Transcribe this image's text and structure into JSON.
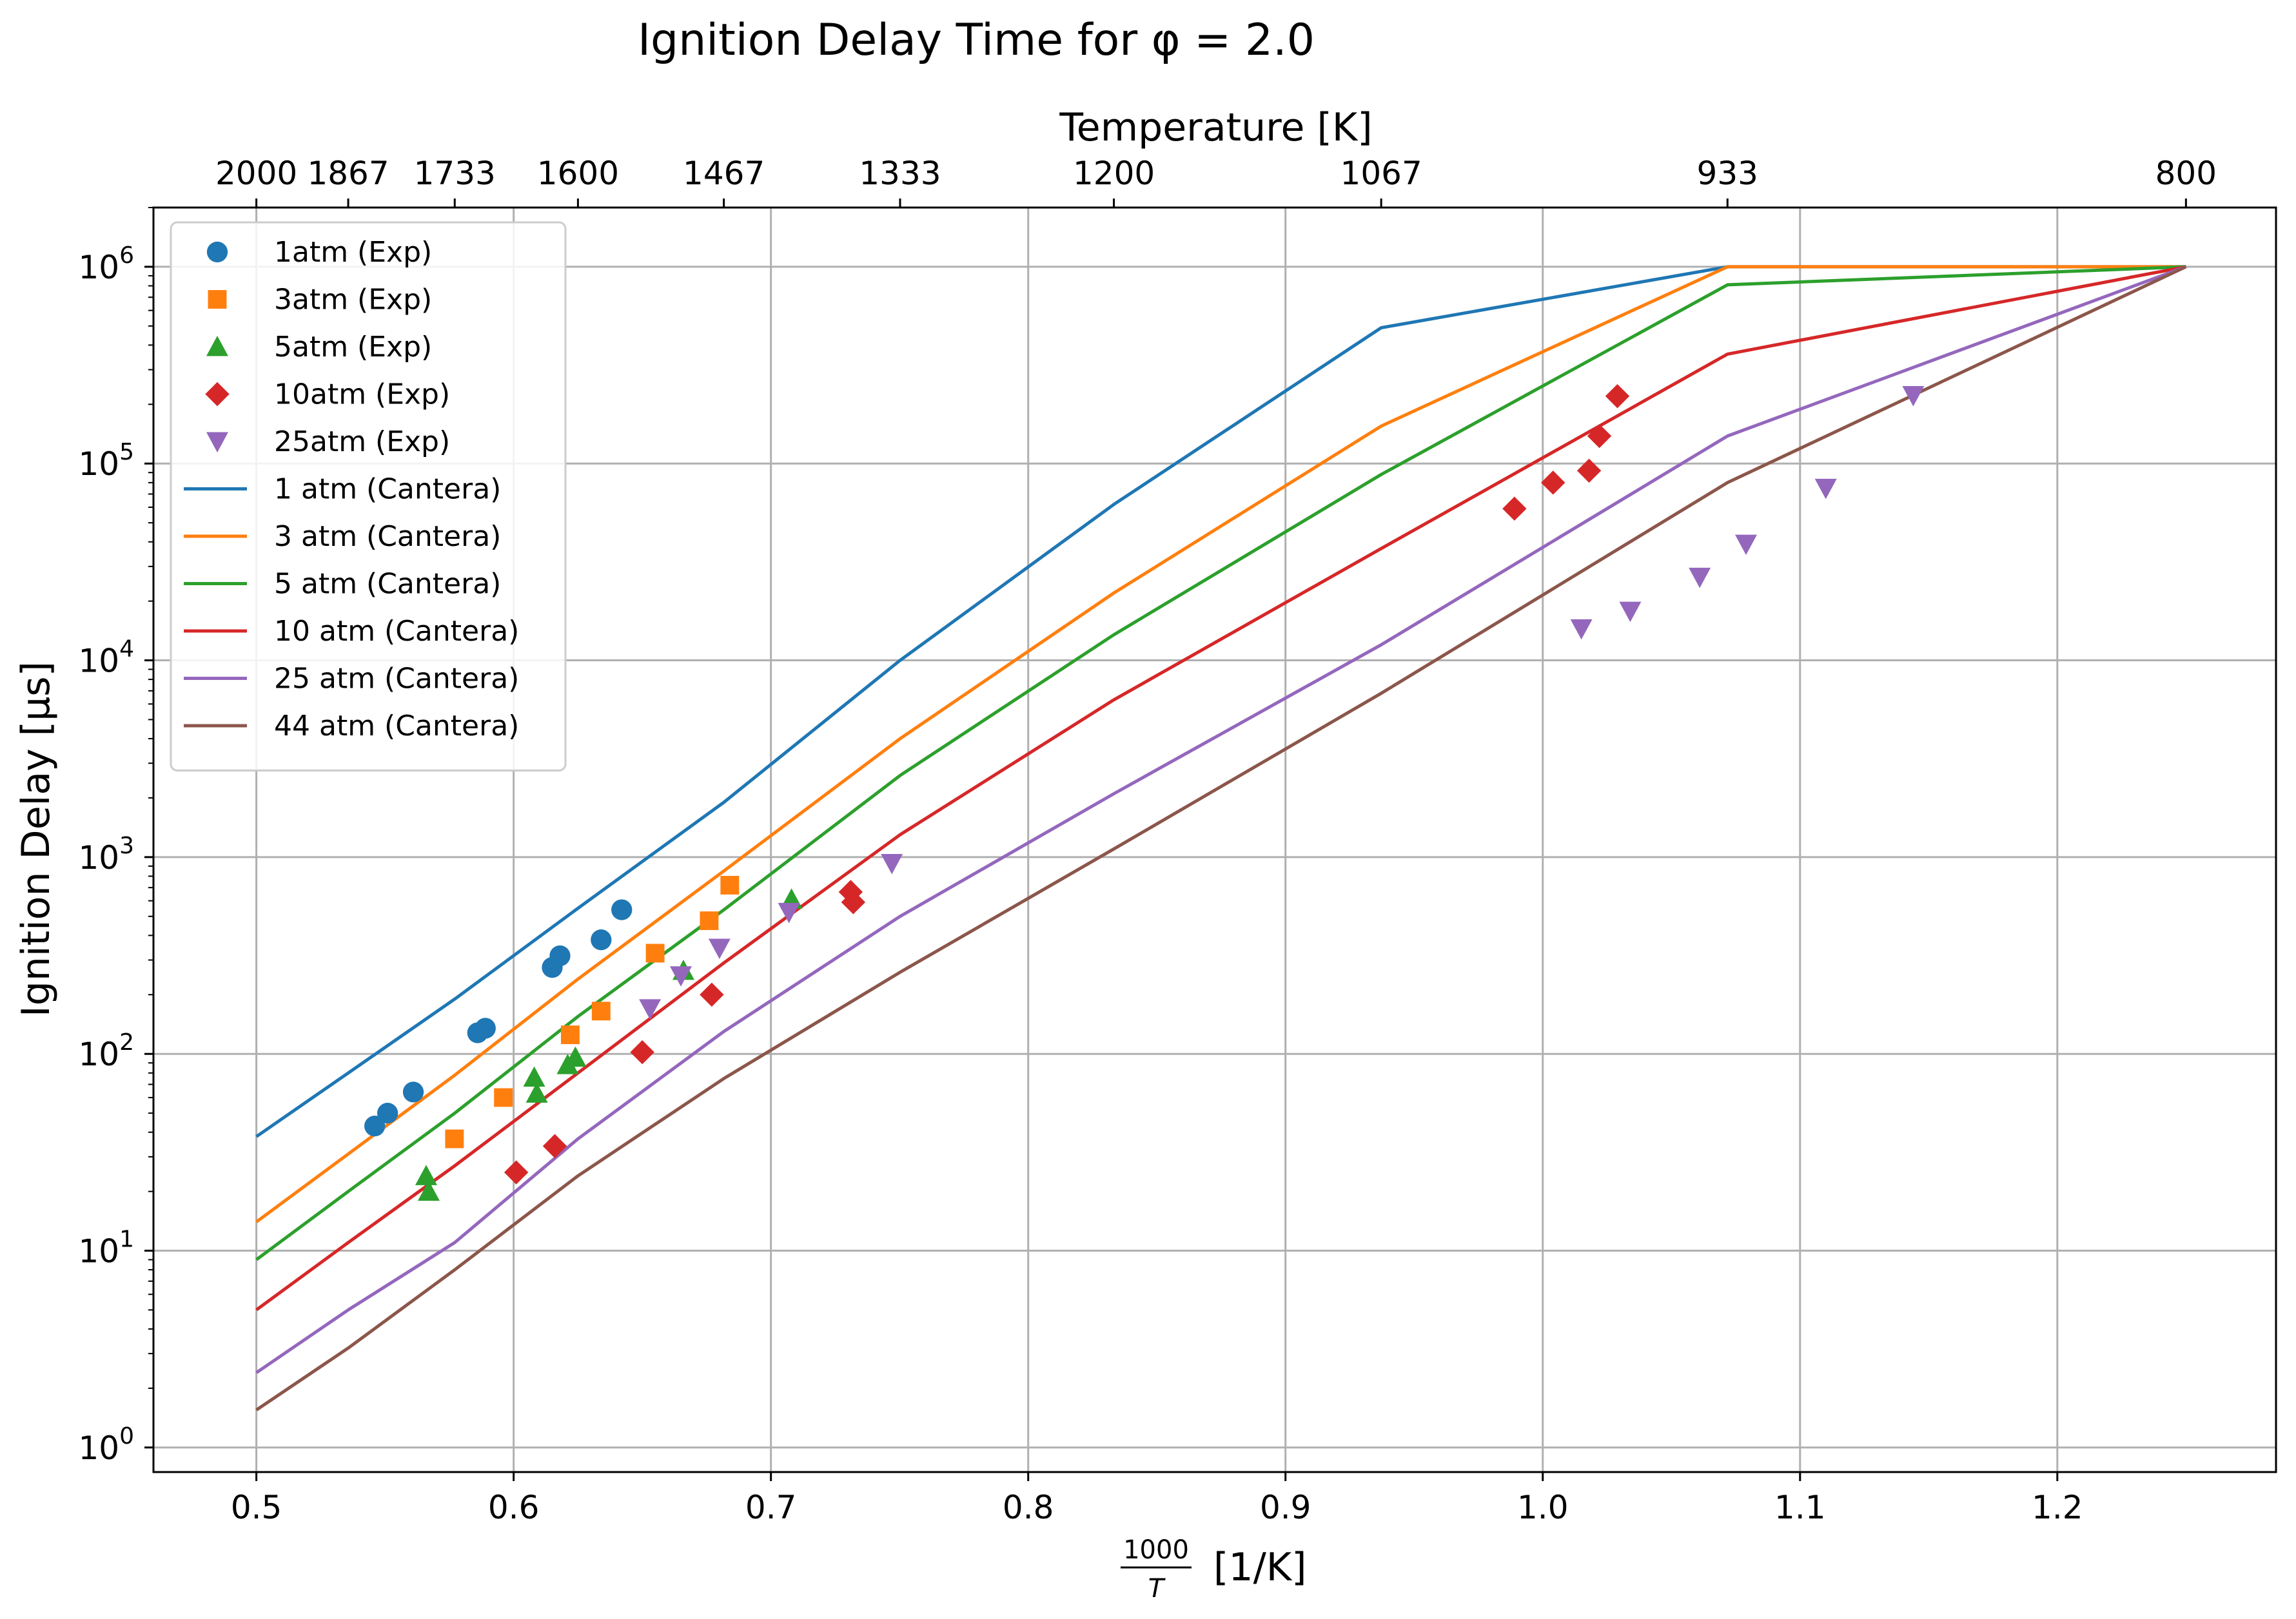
{
  "chart_data": {
    "type": "scatter",
    "title": "Ignition Delay Time for φ = 2.0",
    "xlabel_num": "1000",
    "xlabel_den": "T",
    "xlabel_unit": "[1/K]",
    "ylabel": "Ignition Delay [μs]",
    "top_xlabel": "Temperature [K]",
    "xlim": [
      0.46,
      1.285
    ],
    "ylim": [
      0.75,
      2000000
    ],
    "yscale": "log",
    "grid": true,
    "legend_position": "upper-left",
    "x_ticks": [
      0.5,
      0.6,
      0.7,
      0.8,
      0.9,
      1.0,
      1.1,
      1.2
    ],
    "x_tick_labels": [
      "0.5",
      "0.6",
      "0.7",
      "0.8",
      "0.9",
      "1.0",
      "1.1",
      "1.2"
    ],
    "y_ticks": [
      1,
      10,
      100,
      1000,
      10000,
      100000,
      1000000
    ],
    "y_tick_exponents": [
      "0",
      "1",
      "2",
      "3",
      "4",
      "5",
      "6"
    ],
    "top_ticks": [
      {
        "x": 0.5,
        "label": "2000"
      },
      {
        "x": 0.5357,
        "label": "1867"
      },
      {
        "x": 0.5771,
        "label": "1733"
      },
      {
        "x": 0.625,
        "label": "1600"
      },
      {
        "x": 0.6817,
        "label": "1467"
      },
      {
        "x": 0.7502,
        "label": "1333"
      },
      {
        "x": 0.8333,
        "label": "1200"
      },
      {
        "x": 0.9372,
        "label": "1067"
      },
      {
        "x": 1.0718,
        "label": "933"
      },
      {
        "x": 1.25,
        "label": "800"
      }
    ],
    "experiments": [
      {
        "name": "1atm (Exp)",
        "color": "#1f77b4",
        "marker": "circle",
        "points": [
          [
            0.546,
            43
          ],
          [
            0.551,
            50
          ],
          [
            0.561,
            64
          ],
          [
            0.586,
            128
          ],
          [
            0.589,
            135
          ],
          [
            0.615,
            275
          ],
          [
            0.618,
            315
          ],
          [
            0.634,
            380
          ],
          [
            0.642,
            540
          ]
        ]
      },
      {
        "name": "3atm (Exp)",
        "color": "#ff7f0e",
        "marker": "square",
        "points": [
          [
            0.577,
            37
          ],
          [
            0.596,
            60
          ],
          [
            0.622,
            125
          ],
          [
            0.634,
            165
          ],
          [
            0.655,
            325
          ],
          [
            0.676,
            475
          ],
          [
            0.684,
            720
          ]
        ]
      },
      {
        "name": "5atm (Exp)",
        "color": "#2ca02c",
        "marker": "triangle-up",
        "points": [
          [
            0.566,
            24
          ],
          [
            0.567,
            20
          ],
          [
            0.608,
            76
          ],
          [
            0.609,
            63
          ],
          [
            0.621,
            88
          ],
          [
            0.624,
            96
          ],
          [
            0.666,
            265
          ],
          [
            0.708,
            610
          ]
        ]
      },
      {
        "name": "10atm (Exp)",
        "color": "#d62728",
        "marker": "diamond",
        "points": [
          [
            0.601,
            25
          ],
          [
            0.616,
            34
          ],
          [
            0.65,
            102
          ],
          [
            0.677,
            200
          ],
          [
            0.731,
            665
          ],
          [
            0.732,
            590
          ],
          [
            0.989,
            59000
          ],
          [
            1.004,
            80000
          ],
          [
            1.018,
            92000
          ],
          [
            1.022,
            138000
          ],
          [
            1.029,
            220000
          ]
        ]
      },
      {
        "name": "25atm (Exp)",
        "color": "#9467bd",
        "marker": "triangle-down",
        "points": [
          [
            0.653,
            170
          ],
          [
            0.665,
            250
          ],
          [
            0.68,
            345
          ],
          [
            0.707,
            525
          ],
          [
            0.747,
            930
          ],
          [
            1.015,
            14500
          ],
          [
            1.034,
            17800
          ],
          [
            1.061,
            26500
          ],
          [
            1.079,
            39000
          ],
          [
            1.11,
            75000
          ],
          [
            1.144,
            222000
          ]
        ]
      }
    ],
    "simulations": [
      {
        "name": "1 atm (Cantera)",
        "color": "#1f77b4",
        "points": [
          [
            0.5,
            38
          ],
          [
            0.5357,
            80
          ],
          [
            0.5771,
            190
          ],
          [
            0.625,
            550
          ],
          [
            0.6817,
            1900
          ],
          [
            0.7502,
            10000
          ],
          [
            0.8333,
            62000
          ],
          [
            0.9372,
            490000
          ],
          [
            1.0718,
            1000000
          ],
          [
            1.25,
            1000000
          ]
        ]
      },
      {
        "name": "3 atm (Cantera)",
        "color": "#ff7f0e",
        "points": [
          [
            0.5,
            14
          ],
          [
            0.5357,
            31
          ],
          [
            0.5771,
            78
          ],
          [
            0.625,
            240
          ],
          [
            0.6817,
            850
          ],
          [
            0.7502,
            4000
          ],
          [
            0.8333,
            22000
          ],
          [
            0.9372,
            155000
          ],
          [
            1.0718,
            1000000
          ],
          [
            1.25,
            1000000
          ]
        ]
      },
      {
        "name": "5 atm (Cantera)",
        "color": "#2ca02c",
        "points": [
          [
            0.5,
            9
          ],
          [
            0.5357,
            20
          ],
          [
            0.5771,
            50
          ],
          [
            0.625,
            155
          ],
          [
            0.6817,
            540
          ],
          [
            0.7502,
            2600
          ],
          [
            0.8333,
            13500
          ],
          [
            0.9372,
            88000
          ],
          [
            1.0718,
            810000
          ],
          [
            1.25,
            1000000
          ]
        ]
      },
      {
        "name": "10 atm (Cantera)",
        "color": "#d62728",
        "points": [
          [
            0.5,
            5
          ],
          [
            0.5357,
            11
          ],
          [
            0.5771,
            27
          ],
          [
            0.625,
            80
          ],
          [
            0.6817,
            290
          ],
          [
            0.7502,
            1300
          ],
          [
            0.8333,
            6300
          ],
          [
            0.9372,
            37000
          ],
          [
            1.0718,
            360000
          ],
          [
            1.25,
            1000000
          ]
        ]
      },
      {
        "name": "25 atm (Cantera)",
        "color": "#9467bd",
        "points": [
          [
            0.5,
            2.4
          ],
          [
            0.5357,
            5
          ],
          [
            0.5771,
            11
          ],
          [
            0.625,
            37
          ],
          [
            0.6817,
            130
          ],
          [
            0.7502,
            500
          ],
          [
            0.8333,
            2100
          ],
          [
            0.9372,
            12000
          ],
          [
            1.0718,
            138000
          ],
          [
            1.25,
            1000000
          ]
        ]
      },
      {
        "name": "44 atm (Cantera)",
        "color": "#8c564b",
        "points": [
          [
            0.5,
            1.55
          ],
          [
            0.5357,
            3.2
          ],
          [
            0.5771,
            8
          ],
          [
            0.625,
            24
          ],
          [
            0.6817,
            75
          ],
          [
            0.7502,
            260
          ],
          [
            0.8333,
            1100
          ],
          [
            0.9372,
            6800
          ],
          [
            1.0718,
            80000
          ],
          [
            1.25,
            1000000
          ]
        ]
      }
    ]
  }
}
